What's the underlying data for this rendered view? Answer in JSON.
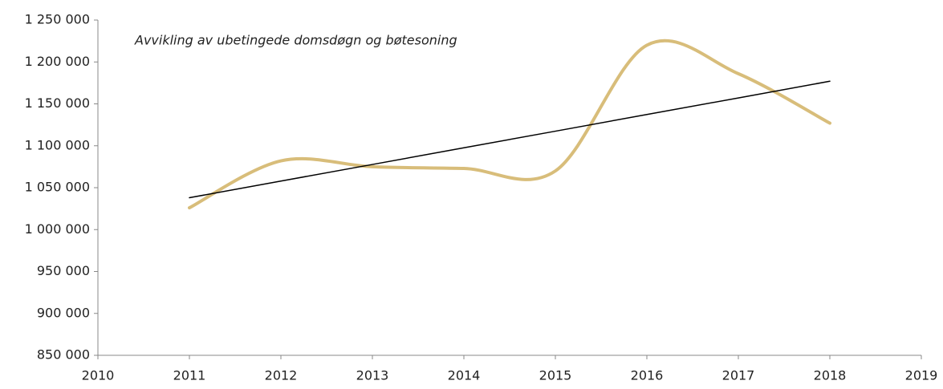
{
  "chart_data": {
    "type": "line",
    "title": "Avvikling av ubetingede domsdøgn og bøtesoning",
    "x": [
      2011,
      2012,
      2013,
      2014,
      2015,
      2016,
      2017,
      2018
    ],
    "series": [
      {
        "color": "#d8bd7a",
        "smooth": true,
        "values": [
          1026000,
          1082000,
          1075000,
          1073000,
          1070000,
          1220000,
          1186000,
          1127000
        ]
      },
      {
        "color": "#000000",
        "smooth": false,
        "values": [
          1038000,
          1057900,
          1077700,
          1097600,
          1117400,
          1137300,
          1157100,
          1177000
        ]
      }
    ],
    "xlim": [
      2010,
      2019
    ],
    "xticks": [
      2010,
      2011,
      2012,
      2013,
      2014,
      2015,
      2016,
      2017,
      2018,
      2019
    ],
    "ylim": [
      850000,
      1250000
    ],
    "yticks": [
      {
        "value": 850000,
        "label": "850 000"
      },
      {
        "value": 900000,
        "label": "900 000"
      },
      {
        "value": 950000,
        "label": "950 000"
      },
      {
        "value": 1000000,
        "label": "1 000 000"
      },
      {
        "value": 1050000,
        "label": "1 050 000"
      },
      {
        "value": 1100000,
        "label": "1 100 000"
      },
      {
        "value": 1150000,
        "label": "1 150 000"
      },
      {
        "value": 1200000,
        "label": "1 200 000"
      },
      {
        "value": 1250000,
        "label": "1 250 000"
      }
    ],
    "grid": false
  }
}
